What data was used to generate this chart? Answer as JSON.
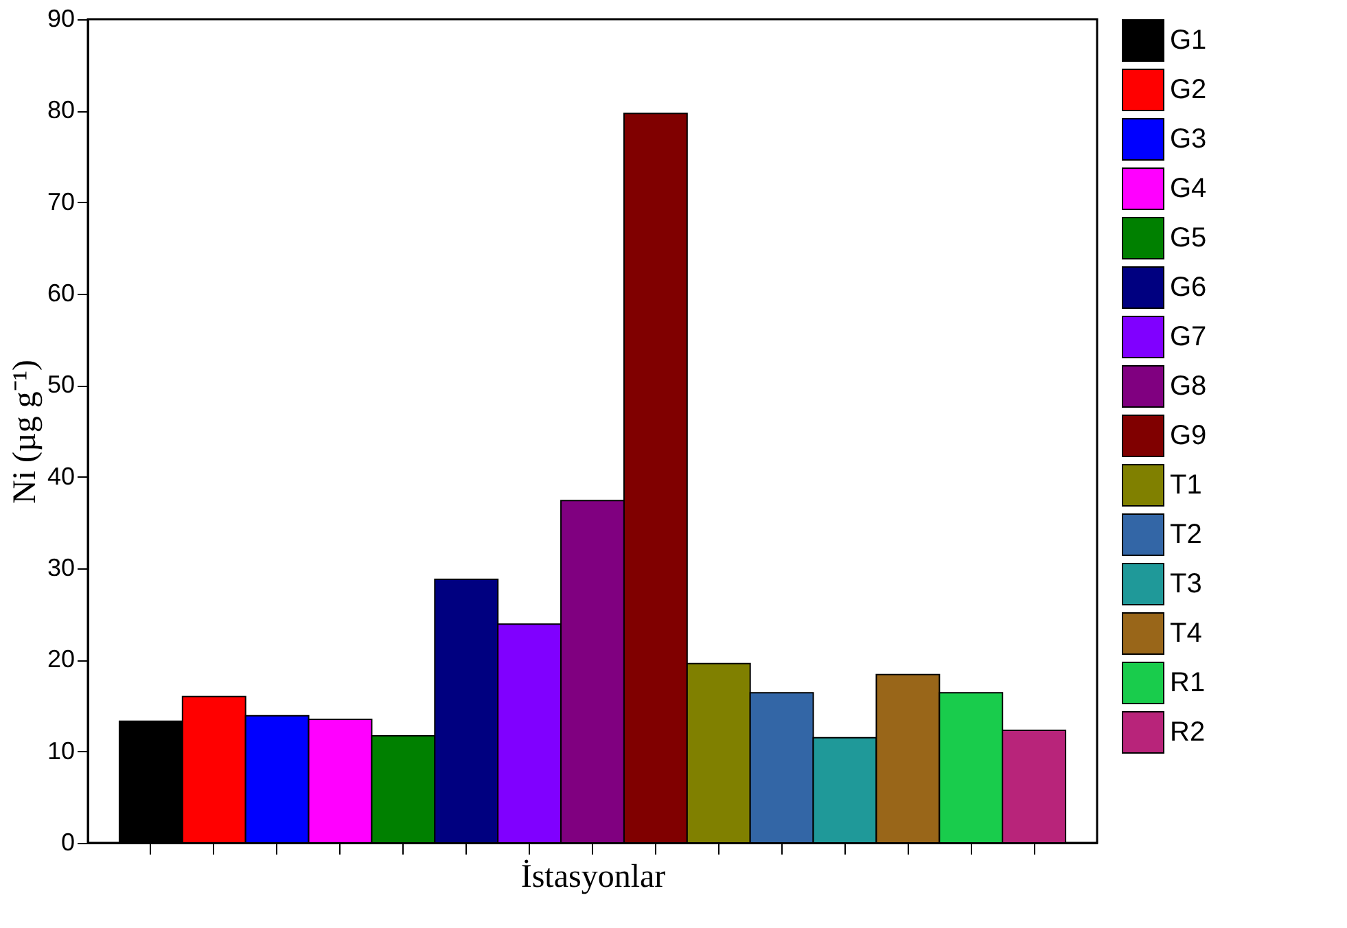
{
  "chart_data": {
    "type": "bar",
    "xlabel": "İstasyonlar",
    "ylabel": "Ni (µg g⁻¹)",
    "categories": [
      null,
      null,
      null,
      null,
      null,
      null,
      null,
      null,
      null,
      null,
      null,
      null,
      null,
      null,
      null
    ],
    "ylim": [
      0,
      90
    ],
    "yticks": [
      0,
      10,
      20,
      30,
      40,
      50,
      60,
      70,
      80,
      90
    ],
    "tick_labels": "y",
    "legend": "right",
    "grid": false,
    "series": [
      {
        "name": "G1",
        "color": "#000000",
        "values": [
          13.3,
          null,
          null,
          null,
          null,
          null,
          null,
          null,
          null,
          null,
          null,
          null,
          null,
          null,
          null
        ]
      },
      {
        "name": "G2",
        "color": "#ff0000",
        "values": [
          null,
          16.0,
          null,
          null,
          null,
          null,
          null,
          null,
          null,
          null,
          null,
          null,
          null,
          null,
          null
        ]
      },
      {
        "name": "G3",
        "color": "#0000ff",
        "values": [
          null,
          null,
          13.9,
          null,
          null,
          null,
          null,
          null,
          null,
          null,
          null,
          null,
          null,
          null,
          null
        ]
      },
      {
        "name": "G4",
        "color": "#ff00ff",
        "values": [
          null,
          null,
          null,
          13.5,
          null,
          null,
          null,
          null,
          null,
          null,
          null,
          null,
          null,
          null,
          null
        ]
      },
      {
        "name": "G5",
        "color": "#008000",
        "values": [
          null,
          null,
          null,
          null,
          11.7,
          null,
          null,
          null,
          null,
          null,
          null,
          null,
          null,
          null,
          null
        ]
      },
      {
        "name": "G6",
        "color": "#000080",
        "values": [
          null,
          null,
          null,
          null,
          null,
          28.8,
          null,
          null,
          null,
          null,
          null,
          null,
          null,
          null,
          null
        ]
      },
      {
        "name": "G7",
        "color": "#8000ff",
        "values": [
          null,
          null,
          null,
          null,
          null,
          null,
          23.9,
          null,
          null,
          null,
          null,
          null,
          null,
          null,
          null
        ]
      },
      {
        "name": "G8",
        "color": "#800080",
        "values": [
          null,
          null,
          null,
          null,
          null,
          null,
          null,
          37.4,
          null,
          null,
          null,
          null,
          null,
          null,
          null
        ]
      },
      {
        "name": "G9",
        "color": "#800000",
        "values": [
          null,
          null,
          null,
          null,
          null,
          null,
          null,
          null,
          79.7,
          null,
          null,
          null,
          null,
          null,
          null
        ]
      },
      {
        "name": "T1",
        "color": "#808000",
        "values": [
          null,
          null,
          null,
          null,
          null,
          null,
          null,
          null,
          null,
          19.6,
          null,
          null,
          null,
          null,
          null
        ]
      },
      {
        "name": "T2",
        "color": "#3366a6",
        "values": [
          null,
          null,
          null,
          null,
          null,
          null,
          null,
          null,
          null,
          null,
          16.4,
          null,
          null,
          null,
          null
        ]
      },
      {
        "name": "T3",
        "color": "#1f9999",
        "values": [
          null,
          null,
          null,
          null,
          null,
          null,
          null,
          null,
          null,
          null,
          null,
          11.5,
          null,
          null,
          null
        ]
      },
      {
        "name": "T4",
        "color": "#996619",
        "values": [
          null,
          null,
          null,
          null,
          null,
          null,
          null,
          null,
          null,
          null,
          null,
          null,
          18.4,
          null,
          null
        ]
      },
      {
        "name": "R1",
        "color": "#19cc4c",
        "values": [
          null,
          null,
          null,
          null,
          null,
          null,
          null,
          null,
          null,
          null,
          null,
          null,
          null,
          16.4,
          null
        ]
      },
      {
        "name": "R2",
        "color": "#b8247a",
        "values": [
          null,
          null,
          null,
          null,
          null,
          null,
          null,
          null,
          null,
          null,
          null,
          null,
          null,
          null,
          12.3
        ]
      }
    ]
  }
}
